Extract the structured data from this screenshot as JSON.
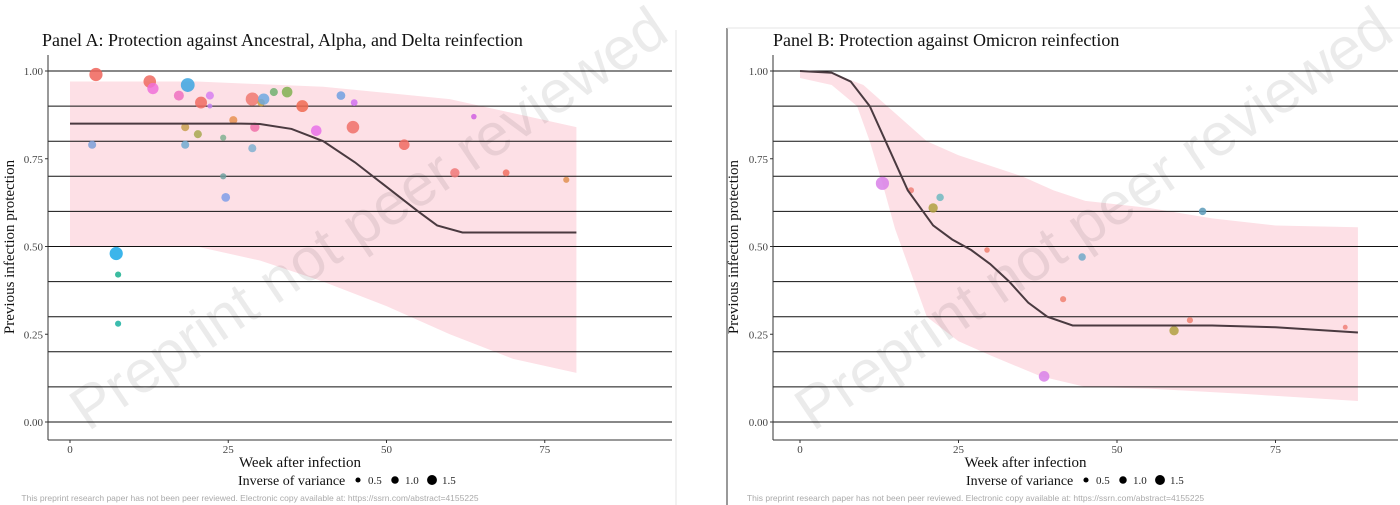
{
  "chart_data": [
    {
      "id": "A",
      "type": "scatter",
      "title": "Panel A: Protection against Ancestral, Alpha, and Delta reinfection",
      "xlabel": "Week after infection",
      "ylabel": "Previous infection protection",
      "xlim": [
        0,
        80
      ],
      "ylim": [
        0,
        1
      ],
      "xticks": [
        0,
        25,
        50,
        75
      ],
      "xtick_labels": [
        "0",
        "25",
        "50",
        "75"
      ],
      "yticks": [
        0,
        0.25,
        0.5,
        0.75,
        1.0
      ],
      "ytick_labels": [
        "0.00",
        "0.25",
        "0.50",
        "0.75",
        "1.00"
      ],
      "gridlines_y": [
        0,
        0.1,
        0.2,
        0.3,
        0.4,
        0.5,
        0.6,
        0.7,
        0.8,
        0.9,
        1.0
      ],
      "ci_color": "#fde0e6",
      "curve_color": "#4a3a40",
      "points": [
        [
          4.1,
          0.99,
          1.5,
          "#f0645a"
        ],
        [
          3.5,
          0.79,
          0.7,
          "#7b9fd8"
        ],
        [
          7.3,
          0.48,
          1.5,
          "#1aa8e8"
        ],
        [
          7.6,
          0.42,
          0.4,
          "#1ab08f"
        ],
        [
          7.6,
          0.28,
          0.4,
          "#1ab0a0"
        ],
        [
          12.6,
          0.97,
          1.4,
          "#ee6a60"
        ],
        [
          13.1,
          0.95,
          1.2,
          "#f070d8"
        ],
        [
          17.2,
          0.93,
          1.0,
          "#ef70c0"
        ],
        [
          18.6,
          0.96,
          1.6,
          "#3ba5e0"
        ],
        [
          18.2,
          0.84,
          0.7,
          "#c8a050"
        ],
        [
          18.2,
          0.79,
          0.7,
          "#70aad0"
        ],
        [
          20.2,
          0.82,
          0.7,
          "#a8a850"
        ],
        [
          20.7,
          0.91,
          1.3,
          "#f06a60"
        ],
        [
          22.1,
          0.93,
          0.7,
          "#d77ff0"
        ],
        [
          22.1,
          0.9,
          0.2,
          "#c080f0"
        ],
        [
          24.2,
          0.81,
          0.4,
          "#80b090"
        ],
        [
          24.2,
          0.7,
          0.4,
          "#70a0a0"
        ],
        [
          24.6,
          0.64,
          0.8,
          "#7f9ee8"
        ],
        [
          25.8,
          0.86,
          0.7,
          "#e89050"
        ],
        [
          28.8,
          0.92,
          1.5,
          "#f07870"
        ],
        [
          29.2,
          0.84,
          0.9,
          "#f070a8"
        ],
        [
          28.8,
          0.78,
          0.7,
          "#80b0d0"
        ],
        [
          30.2,
          0.91,
          0.6,
          "#c8a040"
        ],
        [
          30.6,
          0.92,
          1.2,
          "#6fa8e0"
        ],
        [
          32.2,
          0.94,
          0.7,
          "#70b070"
        ],
        [
          34.3,
          0.94,
          1.1,
          "#80b050"
        ],
        [
          36.7,
          0.9,
          1.3,
          "#f06a50"
        ],
        [
          38.9,
          0.83,
          1.1,
          "#e870e8"
        ],
        [
          42.8,
          0.93,
          0.8,
          "#70a0e0"
        ],
        [
          44.9,
          0.91,
          0.5,
          "#d070f0"
        ],
        [
          44.7,
          0.84,
          1.4,
          "#f07068"
        ],
        [
          52.8,
          0.79,
          1.1,
          "#f06a60"
        ],
        [
          60.8,
          0.71,
          0.9,
          "#f07878"
        ],
        [
          63.8,
          0.87,
          0.3,
          "#d060e0"
        ],
        [
          68.9,
          0.71,
          0.5,
          "#f07060"
        ],
        [
          78.4,
          0.69,
          0.4,
          "#e09050"
        ]
      ],
      "fit_curve": [
        [
          0,
          0.85
        ],
        [
          27,
          0.85
        ],
        [
          30,
          0.849
        ],
        [
          35,
          0.835
        ],
        [
          40,
          0.8
        ],
        [
          45,
          0.74
        ],
        [
          50,
          0.67
        ],
        [
          55,
          0.6
        ],
        [
          58,
          0.56
        ],
        [
          62,
          0.54
        ],
        [
          80,
          0.54
        ]
      ],
      "ci_upper": [
        [
          0,
          0.97
        ],
        [
          20,
          0.97
        ],
        [
          40,
          0.955
        ],
        [
          60,
          0.92
        ],
        [
          70,
          0.88
        ],
        [
          80,
          0.84
        ]
      ],
      "ci_lower": [
        [
          0,
          0.5
        ],
        [
          20,
          0.5
        ],
        [
          30,
          0.46
        ],
        [
          40,
          0.4
        ],
        [
          50,
          0.33
        ],
        [
          60,
          0.25
        ],
        [
          70,
          0.18
        ],
        [
          80,
          0.14
        ]
      ],
      "legend": {
        "title": "Inverse of variance",
        "entries": [
          {
            "label": "0.5",
            "size": 0.5
          },
          {
            "label": "1.0",
            "size": 1.0
          },
          {
            "label": "1.5",
            "size": 1.5
          }
        ],
        "placement": "bottom"
      }
    },
    {
      "id": "B",
      "type": "scatter",
      "title": "Panel B: Protection against Omicron reinfection",
      "xlabel": "Week after infection",
      "ylabel": "Previous infection protection",
      "xlim": [
        0,
        88
      ],
      "ylim": [
        0,
        1
      ],
      "xticks": [
        0,
        25,
        50,
        75
      ],
      "xtick_labels": [
        "0",
        "25",
        "50",
        "75"
      ],
      "yticks": [
        0,
        0.25,
        0.5,
        0.75,
        1.0
      ],
      "ytick_labels": [
        "0.00",
        "0.25",
        "0.50",
        "0.75",
        "1.00"
      ],
      "gridlines_y": [
        0,
        0.1,
        0.2,
        0.3,
        0.4,
        0.5,
        0.6,
        0.7,
        0.8,
        0.9,
        1.0
      ],
      "ci_color": "#fde0e6",
      "curve_color": "#4a3a40",
      "points": [
        [
          13,
          0.68,
          1.5,
          "#d880e8"
        ],
        [
          17.5,
          0.66,
          0.4,
          "#f08078"
        ],
        [
          22.1,
          0.64,
          0.6,
          "#70b8c0"
        ],
        [
          21,
          0.61,
          0.9,
          "#b0a040"
        ],
        [
          29.5,
          0.49,
          0.3,
          "#f08070"
        ],
        [
          44.5,
          0.47,
          0.6,
          "#70a8c8"
        ],
        [
          41.5,
          0.35,
          0.4,
          "#f08070"
        ],
        [
          63.5,
          0.6,
          0.6,
          "#5a9ab8"
        ],
        [
          59,
          0.26,
          0.9,
          "#b0a040"
        ],
        [
          61.5,
          0.29,
          0.4,
          "#f08070"
        ],
        [
          86,
          0.27,
          0.2,
          "#f08078"
        ],
        [
          38.5,
          0.13,
          1.1,
          "#d880e8"
        ]
      ],
      "fit_curve": [
        [
          0,
          1.0
        ],
        [
          5,
          0.995
        ],
        [
          8,
          0.97
        ],
        [
          11,
          0.9
        ],
        [
          14,
          0.78
        ],
        [
          17,
          0.66
        ],
        [
          21,
          0.56
        ],
        [
          24,
          0.52
        ],
        [
          27,
          0.49
        ],
        [
          30,
          0.45
        ],
        [
          33,
          0.4
        ],
        [
          36,
          0.34
        ],
        [
          39,
          0.3
        ],
        [
          43,
          0.275
        ],
        [
          50,
          0.275
        ],
        [
          65,
          0.275
        ],
        [
          75,
          0.27
        ],
        [
          88,
          0.255
        ]
      ],
      "ci_upper": [
        [
          0,
          1.0
        ],
        [
          5,
          0.995
        ],
        [
          10,
          0.96
        ],
        [
          15,
          0.88
        ],
        [
          20,
          0.8
        ],
        [
          25,
          0.76
        ],
        [
          30,
          0.73
        ],
        [
          35,
          0.7
        ],
        [
          40,
          0.66
        ],
        [
          45,
          0.63
        ],
        [
          55,
          0.61
        ],
        [
          65,
          0.58
        ],
        [
          75,
          0.56
        ],
        [
          88,
          0.555
        ]
      ],
      "ci_lower": [
        [
          0,
          0.98
        ],
        [
          5,
          0.96
        ],
        [
          9,
          0.9
        ],
        [
          11,
          0.8
        ],
        [
          13,
          0.68
        ],
        [
          15,
          0.55
        ],
        [
          18,
          0.4
        ],
        [
          20,
          0.3
        ],
        [
          25,
          0.23
        ],
        [
          30,
          0.19
        ],
        [
          38,
          0.13
        ],
        [
          45,
          0.1
        ],
        [
          55,
          0.095
        ],
        [
          70,
          0.08
        ],
        [
          88,
          0.06
        ]
      ],
      "legend": {
        "title": "Inverse of variance",
        "entries": [
          {
            "label": "0.5",
            "size": 0.5
          },
          {
            "label": "1.0",
            "size": 1.0
          },
          {
            "label": "1.5",
            "size": 1.5
          }
        ],
        "placement": "bottom"
      }
    }
  ],
  "watermark": "Preprint not peer reviewed",
  "footer": "This preprint research paper has not been peer reviewed. Electronic copy available at: https://ssrn.com/abstract=4155225"
}
